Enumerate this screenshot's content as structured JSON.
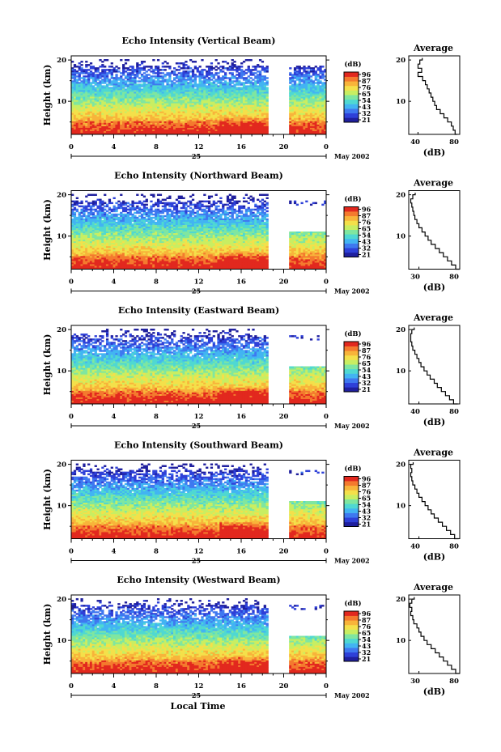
{
  "colors": {
    "scale": [
      "#1f1f9e",
      "#2e40d8",
      "#3e78f0",
      "#42b4f2",
      "#4fd8d2",
      "#7fe6a0",
      "#c8ee62",
      "#f4e04a",
      "#f8b43a",
      "#f47a2e",
      "#e2281e"
    ],
    "background": "#ffffff",
    "line": "#000000"
  },
  "common": {
    "ylabel": "Height (km)",
    "colorbar_title": "(dB)",
    "colorbar_ticks": [
      "96",
      "87",
      "76",
      "65",
      "54",
      "43",
      "32",
      "21"
    ],
    "x_ticks": [
      "0",
      "4",
      "8",
      "12",
      "16",
      "20",
      "0"
    ],
    "day_label": "25",
    "month_label": "May 2002",
    "xlabel_bottom": "Local Time",
    "avg_title": "Average",
    "avg_xlabel": "(dB)",
    "y_ticks": [
      "20",
      "10"
    ]
  },
  "panels": [
    {
      "title": "Echo Intensity (Vertical Beam)",
      "avg_x_ticks": [
        "40",
        "80"
      ]
    },
    {
      "title": "Echo Intensity (Northward Beam)",
      "avg_x_ticks": [
        "30",
        "80"
      ]
    },
    {
      "title": "Echo Intensity (Eastward Beam)",
      "avg_x_ticks": [
        "40",
        "80"
      ]
    },
    {
      "title": "Echo Intensity (Southward Beam)",
      "avg_x_ticks": [
        "40",
        "80"
      ]
    },
    {
      "title": "Echo Intensity (Westward Beam)",
      "avg_x_ticks": [
        "30",
        "80"
      ]
    }
  ],
  "chart_data": [
    {
      "type": "heatmap",
      "title": "Echo Intensity (Vertical Beam)",
      "xlabel": "",
      "ylabel": "Height (km)",
      "xlim": [
        0,
        24
      ],
      "ylim": [
        2,
        21
      ],
      "colorbar": {
        "label": "(dB)",
        "range": [
          21,
          96
        ]
      },
      "data_gaps_hours": [
        [
          18.5,
          20.5
        ]
      ],
      "average_profile": {
        "title": "Average",
        "xlabel": "(dB)",
        "xlim": [
          30,
          85
        ],
        "ylim": [
          2,
          21
        ],
        "height_km": [
          2,
          3,
          4,
          5,
          6,
          7,
          8,
          9,
          10,
          11,
          12,
          13,
          14,
          15,
          16,
          17,
          18,
          19,
          20
        ],
        "db": [
          82,
          80,
          78,
          76,
          72,
          68,
          64,
          60,
          58,
          56,
          54,
          52,
          50,
          48,
          45,
          40,
          44,
          40,
          42
        ]
      }
    },
    {
      "type": "heatmap",
      "title": "Echo Intensity (Northward Beam)",
      "xlabel": "",
      "ylabel": "Height (km)",
      "xlim": [
        0,
        24
      ],
      "ylim": [
        2,
        21
      ],
      "colorbar": {
        "label": "(dB)",
        "range": [
          21,
          96
        ]
      },
      "data_gaps_hours": [
        [
          18.5,
          20.5
        ]
      ],
      "average_profile": {
        "title": "Average",
        "xlabel": "(dB)",
        "xlim": [
          30,
          80
        ],
        "ylim": [
          2,
          21
        ],
        "height_km": [
          2,
          3,
          4,
          5,
          6,
          7,
          8,
          9,
          10,
          11,
          12,
          13,
          14,
          15,
          16,
          17,
          18,
          19,
          20
        ],
        "db": [
          80,
          76,
          72,
          68,
          64,
          60,
          56,
          52,
          49,
          46,
          43,
          40,
          38,
          36,
          35,
          34,
          33,
          32,
          34
        ]
      }
    },
    {
      "type": "heatmap",
      "title": "Echo Intensity (Eastward Beam)",
      "xlabel": "",
      "ylabel": "Height (km)",
      "xlim": [
        0,
        24
      ],
      "ylim": [
        2,
        21
      ],
      "colorbar": {
        "label": "(dB)",
        "range": [
          21,
          96
        ]
      },
      "data_gaps_hours": [
        [
          18.5,
          20.5
        ]
      ],
      "average_profile": {
        "title": "Average",
        "xlabel": "(dB)",
        "xlim": [
          30,
          80
        ],
        "ylim": [
          2,
          21
        ],
        "height_km": [
          2,
          3,
          4,
          5,
          6,
          7,
          8,
          9,
          10,
          11,
          12,
          13,
          14,
          15,
          16,
          17,
          18,
          19,
          20
        ],
        "db": [
          78,
          74,
          70,
          66,
          62,
          58,
          55,
          51,
          48,
          45,
          42,
          40,
          38,
          36,
          34,
          33,
          32,
          32,
          33
        ]
      }
    },
    {
      "type": "heatmap",
      "title": "Echo Intensity (Southward Beam)",
      "xlabel": "",
      "ylabel": "Height (km)",
      "xlim": [
        0,
        24
      ],
      "ylim": [
        2,
        21
      ],
      "colorbar": {
        "label": "(dB)",
        "range": [
          21,
          96
        ]
      },
      "data_gaps_hours": [
        [
          18.5,
          20.5
        ]
      ],
      "average_profile": {
        "title": "Average",
        "xlabel": "(dB)",
        "xlim": [
          30,
          80
        ],
        "ylim": [
          2,
          21
        ],
        "height_km": [
          2,
          3,
          4,
          5,
          6,
          7,
          8,
          9,
          10,
          11,
          12,
          13,
          14,
          15,
          16,
          17,
          18,
          19,
          20
        ],
        "db": [
          79,
          75,
          71,
          67,
          63,
          59,
          55,
          52,
          49,
          46,
          43,
          40,
          38,
          36,
          34,
          33,
          32,
          33,
          32
        ]
      }
    },
    {
      "type": "heatmap",
      "title": "Echo Intensity (Westward Beam)",
      "xlabel": "Local Time",
      "ylabel": "Height (km)",
      "xlim": [
        0,
        24
      ],
      "ylim": [
        2,
        21
      ],
      "colorbar": {
        "label": "(dB)",
        "range": [
          21,
          96
        ]
      },
      "data_gaps_hours": [
        [
          18.5,
          20.5
        ]
      ],
      "average_profile": {
        "title": "Average",
        "xlabel": "(dB)",
        "xlim": [
          30,
          80
        ],
        "ylim": [
          2,
          21
        ],
        "height_km": [
          2,
          3,
          4,
          5,
          6,
          7,
          8,
          9,
          10,
          11,
          12,
          13,
          14,
          15,
          16,
          17,
          18,
          19,
          20
        ],
        "db": [
          80,
          76,
          72,
          68,
          64,
          60,
          56,
          52,
          48,
          45,
          42,
          40,
          38,
          35,
          34,
          32,
          33,
          31,
          33
        ]
      }
    }
  ]
}
